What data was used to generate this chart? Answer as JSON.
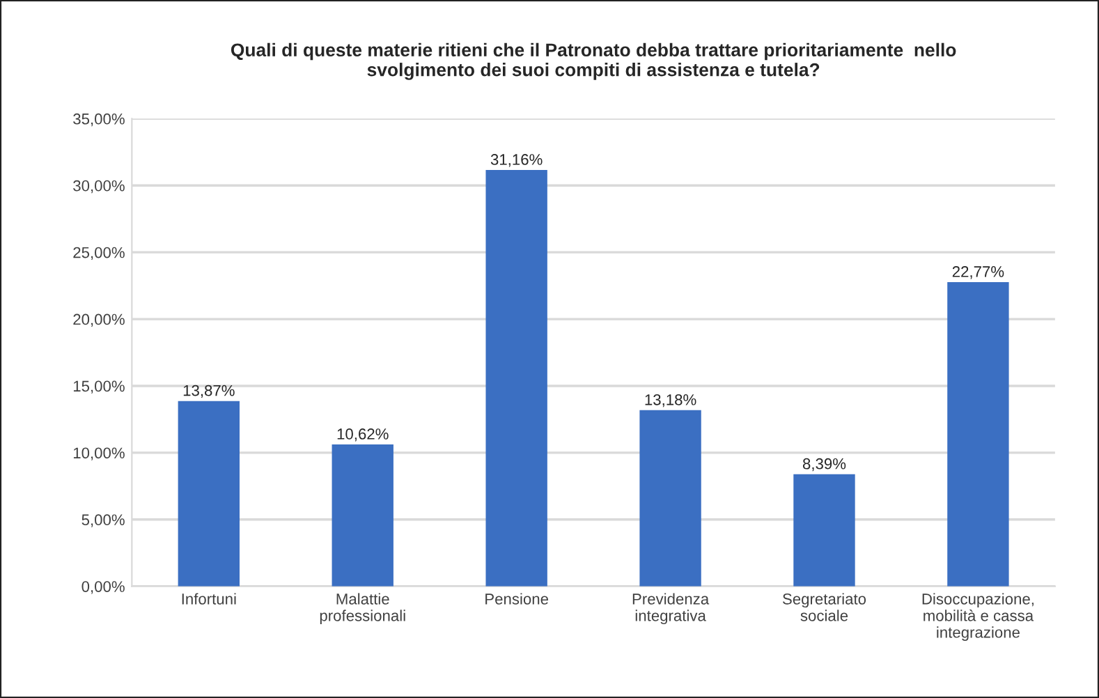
{
  "chart_data": {
    "type": "bar",
    "title": "Quali di queste materie ritieni che il Patronato debba trattare prioritariamente  nello\nsvolgimento dei suoi compiti di assistenza e tutela?",
    "categories": [
      "Infortuni",
      "Malattie\nprofessionali",
      "Pensione",
      "Previdenza\nintegrativa",
      "Segretariato\nsociale",
      "Disoccupazione,\nmobilità e cassa\nintegrazione"
    ],
    "values": [
      13.87,
      10.62,
      31.16,
      13.18,
      8.39,
      22.77
    ],
    "value_labels": [
      "13,87%",
      "10,62%",
      "31,16%",
      "13,18%",
      "8,39%",
      "22,77%"
    ],
    "color": "#3b6fc2",
    "ylim": [
      0,
      35
    ],
    "yticks": [
      {
        "value": 0,
        "label": "0,00%"
      },
      {
        "value": 5,
        "label": "5,00%"
      },
      {
        "value": 10,
        "label": "10,00%"
      },
      {
        "value": 15,
        "label": "15,00%"
      },
      {
        "value": 20,
        "label": "20,00%"
      },
      {
        "value": 25,
        "label": "25,00%"
      },
      {
        "value": 30,
        "label": "30,00%"
      },
      {
        "value": 35,
        "label": "35,00%"
      }
    ],
    "grid": "y",
    "legend": false
  }
}
